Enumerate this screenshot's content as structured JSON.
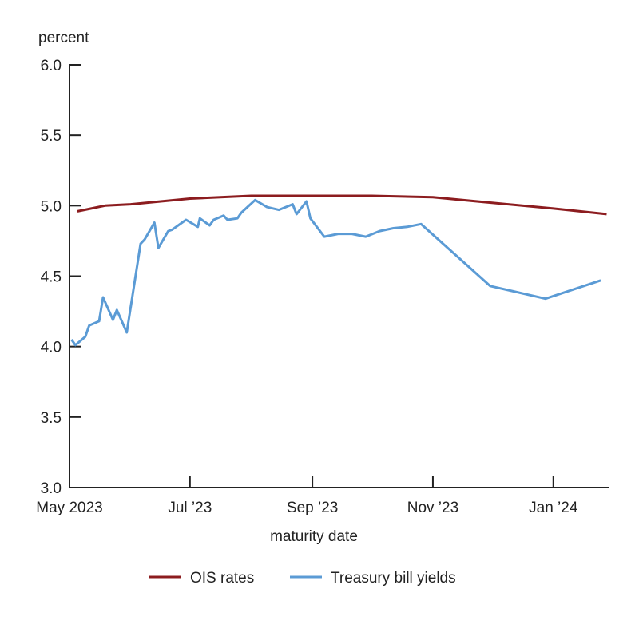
{
  "chart_data": {
    "type": "line",
    "title": "",
    "ylabel": "percent",
    "xlabel": "maturity date",
    "ylim": [
      3.0,
      6.0
    ],
    "xlim": [
      "2023-05-01",
      "2024-01-29"
    ],
    "y_ticks": [
      "3.0",
      "3.5",
      "4.0",
      "4.5",
      "5.0",
      "5.5",
      "6.0"
    ],
    "x_ticks": [
      {
        "date": "2023-05-01",
        "label": "May 2023"
      },
      {
        "date": "2023-07-01",
        "label": "Jul ’23"
      },
      {
        "date": "2023-09-01",
        "label": "Sep ’23"
      },
      {
        "date": "2023-11-01",
        "label": "Nov ’23"
      },
      {
        "date": "2024-01-01",
        "label": "Jan ’24"
      }
    ],
    "grid": false,
    "legend_position": "bottom",
    "series": [
      {
        "name": "OIS rates",
        "color": "#8c1c1f",
        "points": [
          [
            "2023-05-05",
            4.96
          ],
          [
            "2023-05-12",
            4.98
          ],
          [
            "2023-05-19",
            5.0
          ],
          [
            "2023-06-01",
            5.01
          ],
          [
            "2023-07-01",
            5.05
          ],
          [
            "2023-08-01",
            5.07
          ],
          [
            "2023-09-01",
            5.07
          ],
          [
            "2023-10-01",
            5.07
          ],
          [
            "2023-11-01",
            5.06
          ],
          [
            "2023-12-01",
            5.02
          ],
          [
            "2024-01-01",
            4.98
          ],
          [
            "2024-01-28",
            4.94
          ]
        ]
      },
      {
        "name": "Treasury bill yields",
        "color": "#5b9bd5",
        "points": [
          [
            "2023-05-02",
            4.05
          ],
          [
            "2023-05-04",
            4.01
          ],
          [
            "2023-05-09",
            4.07
          ],
          [
            "2023-05-11",
            4.15
          ],
          [
            "2023-05-16",
            4.18
          ],
          [
            "2023-05-18",
            4.35
          ],
          [
            "2023-05-23",
            4.19
          ],
          [
            "2023-05-25",
            4.26
          ],
          [
            "2023-05-30",
            4.1
          ],
          [
            "2023-06-06",
            4.73
          ],
          [
            "2023-06-08",
            4.76
          ],
          [
            "2023-06-13",
            4.88
          ],
          [
            "2023-06-15",
            4.7
          ],
          [
            "2023-06-20",
            4.82
          ],
          [
            "2023-06-22",
            4.83
          ],
          [
            "2023-06-29",
            4.9
          ],
          [
            "2023-07-05",
            4.85
          ],
          [
            "2023-07-06",
            4.91
          ],
          [
            "2023-07-11",
            4.86
          ],
          [
            "2023-07-13",
            4.9
          ],
          [
            "2023-07-18",
            4.93
          ],
          [
            "2023-07-20",
            4.9
          ],
          [
            "2023-07-25",
            4.91
          ],
          [
            "2023-07-27",
            4.95
          ],
          [
            "2023-08-03",
            5.04
          ],
          [
            "2023-08-09",
            4.99
          ],
          [
            "2023-08-15",
            4.97
          ],
          [
            "2023-08-22",
            5.01
          ],
          [
            "2023-08-24",
            4.94
          ],
          [
            "2023-08-29",
            5.03
          ],
          [
            "2023-08-31",
            4.91
          ],
          [
            "2023-09-07",
            4.78
          ],
          [
            "2023-09-14",
            4.8
          ],
          [
            "2023-09-21",
            4.8
          ],
          [
            "2023-09-28",
            4.78
          ],
          [
            "2023-10-05",
            4.82
          ],
          [
            "2023-10-12",
            4.84
          ],
          [
            "2023-10-19",
            4.85
          ],
          [
            "2023-10-26",
            4.87
          ],
          [
            "2023-11-30",
            4.43
          ],
          [
            "2023-12-28",
            4.34
          ],
          [
            "2024-01-25",
            4.47
          ]
        ]
      }
    ]
  }
}
